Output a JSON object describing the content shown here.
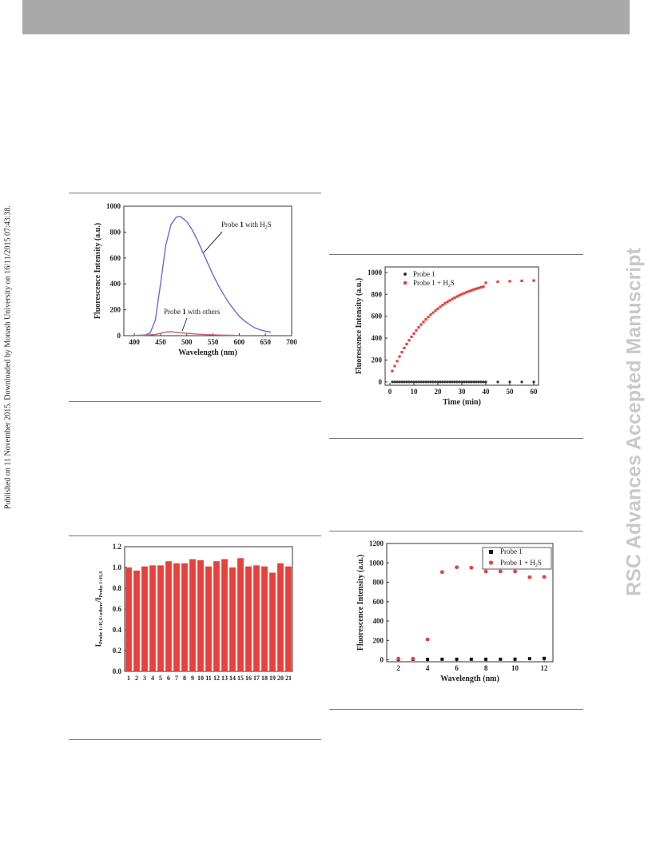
{
  "side_text_left": "Published on 11 November 2015. Downloaded by Monash University on 16/11/2015 07:43:38.",
  "side_text_right": "RSC Advances Accepted Manuscript",
  "chart_data": [
    {
      "type": "line",
      "ylabel": "Fluorescence Intensity (a.u.)",
      "xlabel": "Wavelength (nm)",
      "xlim": [
        380,
        700
      ],
      "ylim": [
        0,
        1000
      ],
      "xticks": [
        400,
        450,
        500,
        550,
        600,
        650,
        700
      ],
      "yticks": [
        0,
        200,
        400,
        600,
        800,
        1000
      ],
      "series": [
        {
          "name": "Probe 1 with H₂S",
          "color": "#6a6adc",
          "x": [
            400,
            420,
            430,
            440,
            450,
            460,
            470,
            480,
            485,
            490,
            500,
            510,
            520,
            530,
            540,
            550,
            560,
            570,
            580,
            590,
            600,
            610,
            620,
            630,
            640,
            650,
            660
          ],
          "values": [
            2,
            5,
            20,
            120,
            400,
            700,
            860,
            915,
            922,
            915,
            880,
            820,
            740,
            650,
            560,
            470,
            390,
            320,
            255,
            200,
            150,
            115,
            85,
            60,
            45,
            35,
            28
          ]
        },
        {
          "name": "Probe 1 with others",
          "color": "#c06070",
          "x": [
            400,
            420,
            440,
            450,
            460,
            470,
            480,
            500,
            520,
            540,
            560,
            580,
            600
          ],
          "values": [
            1,
            3,
            10,
            18,
            28,
            30,
            26,
            18,
            12,
            8,
            5,
            3,
            1
          ]
        }
      ],
      "annotations": [
        {
          "text": "Probe ",
          "bold": "1",
          "rest": " with H",
          "sub": "2",
          "tail": "S"
        },
        {
          "text": "Probe ",
          "bold": "1",
          "rest": " with others"
        }
      ]
    },
    {
      "type": "scatter",
      "ylabel": "Fluorescence Intensity (a.u.)",
      "xlabel": "Time (min)",
      "xlim": [
        -2,
        62
      ],
      "ylim": [
        -30,
        1050
      ],
      "xticks": [
        0,
        10,
        20,
        30,
        40,
        50,
        60
      ],
      "yticks": [
        0,
        200,
        400,
        600,
        800,
        1000
      ],
      "legend": "top-left",
      "series": [
        {
          "name": "Probe 1",
          "color": "#333333",
          "x": [
            1,
            2,
            3,
            4,
            5,
            6,
            7,
            8,
            9,
            10,
            11,
            12,
            13,
            14,
            15,
            16,
            17,
            18,
            19,
            20,
            21,
            22,
            23,
            24,
            25,
            26,
            27,
            28,
            29,
            30,
            31,
            32,
            33,
            34,
            35,
            36,
            37,
            38,
            39,
            40,
            45,
            50,
            55,
            60
          ],
          "values": [
            0,
            0,
            0,
            0,
            0,
            0,
            0,
            0,
            0,
            0,
            0,
            0,
            0,
            0,
            0,
            0,
            0,
            0,
            0,
            0,
            0,
            0,
            0,
            0,
            0,
            0,
            0,
            0,
            0,
            0,
            0,
            0,
            0,
            0,
            0,
            0,
            0,
            0,
            0,
            0,
            0,
            0,
            0,
            0
          ]
        },
        {
          "name": "Probe 1 + H₂S",
          "color": "#e8403a",
          "x": [
            1,
            2,
            3,
            4,
            5,
            6,
            7,
            8,
            9,
            10,
            11,
            12,
            13,
            14,
            15,
            16,
            17,
            18,
            19,
            20,
            21,
            22,
            23,
            24,
            25,
            26,
            27,
            28,
            29,
            30,
            31,
            32,
            33,
            34,
            35,
            36,
            37,
            38,
            39,
            40,
            45,
            50,
            55,
            60
          ],
          "values": [
            100,
            145,
            190,
            232,
            272,
            310,
            346,
            380,
            412,
            442,
            471,
            498,
            524,
            548,
            571,
            593,
            614,
            633,
            652,
            669,
            686,
            702,
            717,
            731,
            744,
            757,
            769,
            780,
            791,
            801,
            810,
            819,
            828,
            836,
            844,
            851,
            858,
            864,
            870,
            905,
            915,
            920,
            923,
            925
          ]
        }
      ],
      "legend_labels": [
        {
          "text": "Probe 1"
        },
        {
          "text": "Probe 1 + H",
          "sub": "2",
          "tail": "S"
        }
      ]
    },
    {
      "type": "bar",
      "ylabel_main": "I",
      "ylabel_sub1": "Probe 1+H₂S+others",
      "ylabel_mid": "/I",
      "ylabel_sub2": "Probe 1+H₂S",
      "ylim": [
        0,
        1.2
      ],
      "yticks": [
        "0.0",
        "0.2",
        "0.4",
        "0.6",
        "0.8",
        "1.0",
        "1.2"
      ],
      "categories": [
        "1",
        "2",
        "3",
        "4",
        "5",
        "6",
        "7",
        "8",
        "9",
        "10",
        "11",
        "12",
        "13",
        "14",
        "15",
        "16",
        "17",
        "18",
        "19",
        "20",
        "21"
      ],
      "values": [
        1.0,
        0.97,
        1.01,
        1.02,
        1.02,
        1.06,
        1.04,
        1.04,
        1.08,
        1.07,
        1.01,
        1.06,
        1.08,
        1.0,
        1.09,
        1.01,
        1.02,
        1.01,
        0.95,
        1.04,
        1.01
      ],
      "color": "#e8403a"
    },
    {
      "type": "scatter",
      "ylabel": "Fluorescence Intensity (a.u.)",
      "xlabel": "Wavelength (nm)",
      "xlim": [
        1.2,
        12.6
      ],
      "ylim": [
        -20,
        1200
      ],
      "xticks": [
        2,
        4,
        6,
        8,
        10,
        12
      ],
      "yticks": [
        0,
        200,
        400,
        600,
        800,
        1000,
        1200
      ],
      "legend": "top-right",
      "series": [
        {
          "name": "Probe 1",
          "color": "#111111",
          "x": [
            2,
            3,
            4,
            5,
            6,
            7,
            8,
            9,
            10,
            11,
            12
          ],
          "values": [
            5,
            5,
            5,
            6,
            6,
            6,
            6,
            6,
            7,
            12,
            15
          ]
        },
        {
          "name": "Probe 1 + H₂S",
          "color": "#e8403a",
          "x": [
            2,
            3,
            4,
            5,
            6,
            7,
            8,
            9,
            10,
            11,
            12
          ],
          "values": [
            12,
            12,
            210,
            905,
            955,
            950,
            912,
            912,
            912,
            852,
            855
          ]
        }
      ],
      "legend_labels": [
        {
          "text": "Probe 1"
        },
        {
          "text": "Probe 1 + H",
          "sub": "2",
          "tail": "S"
        }
      ]
    }
  ]
}
